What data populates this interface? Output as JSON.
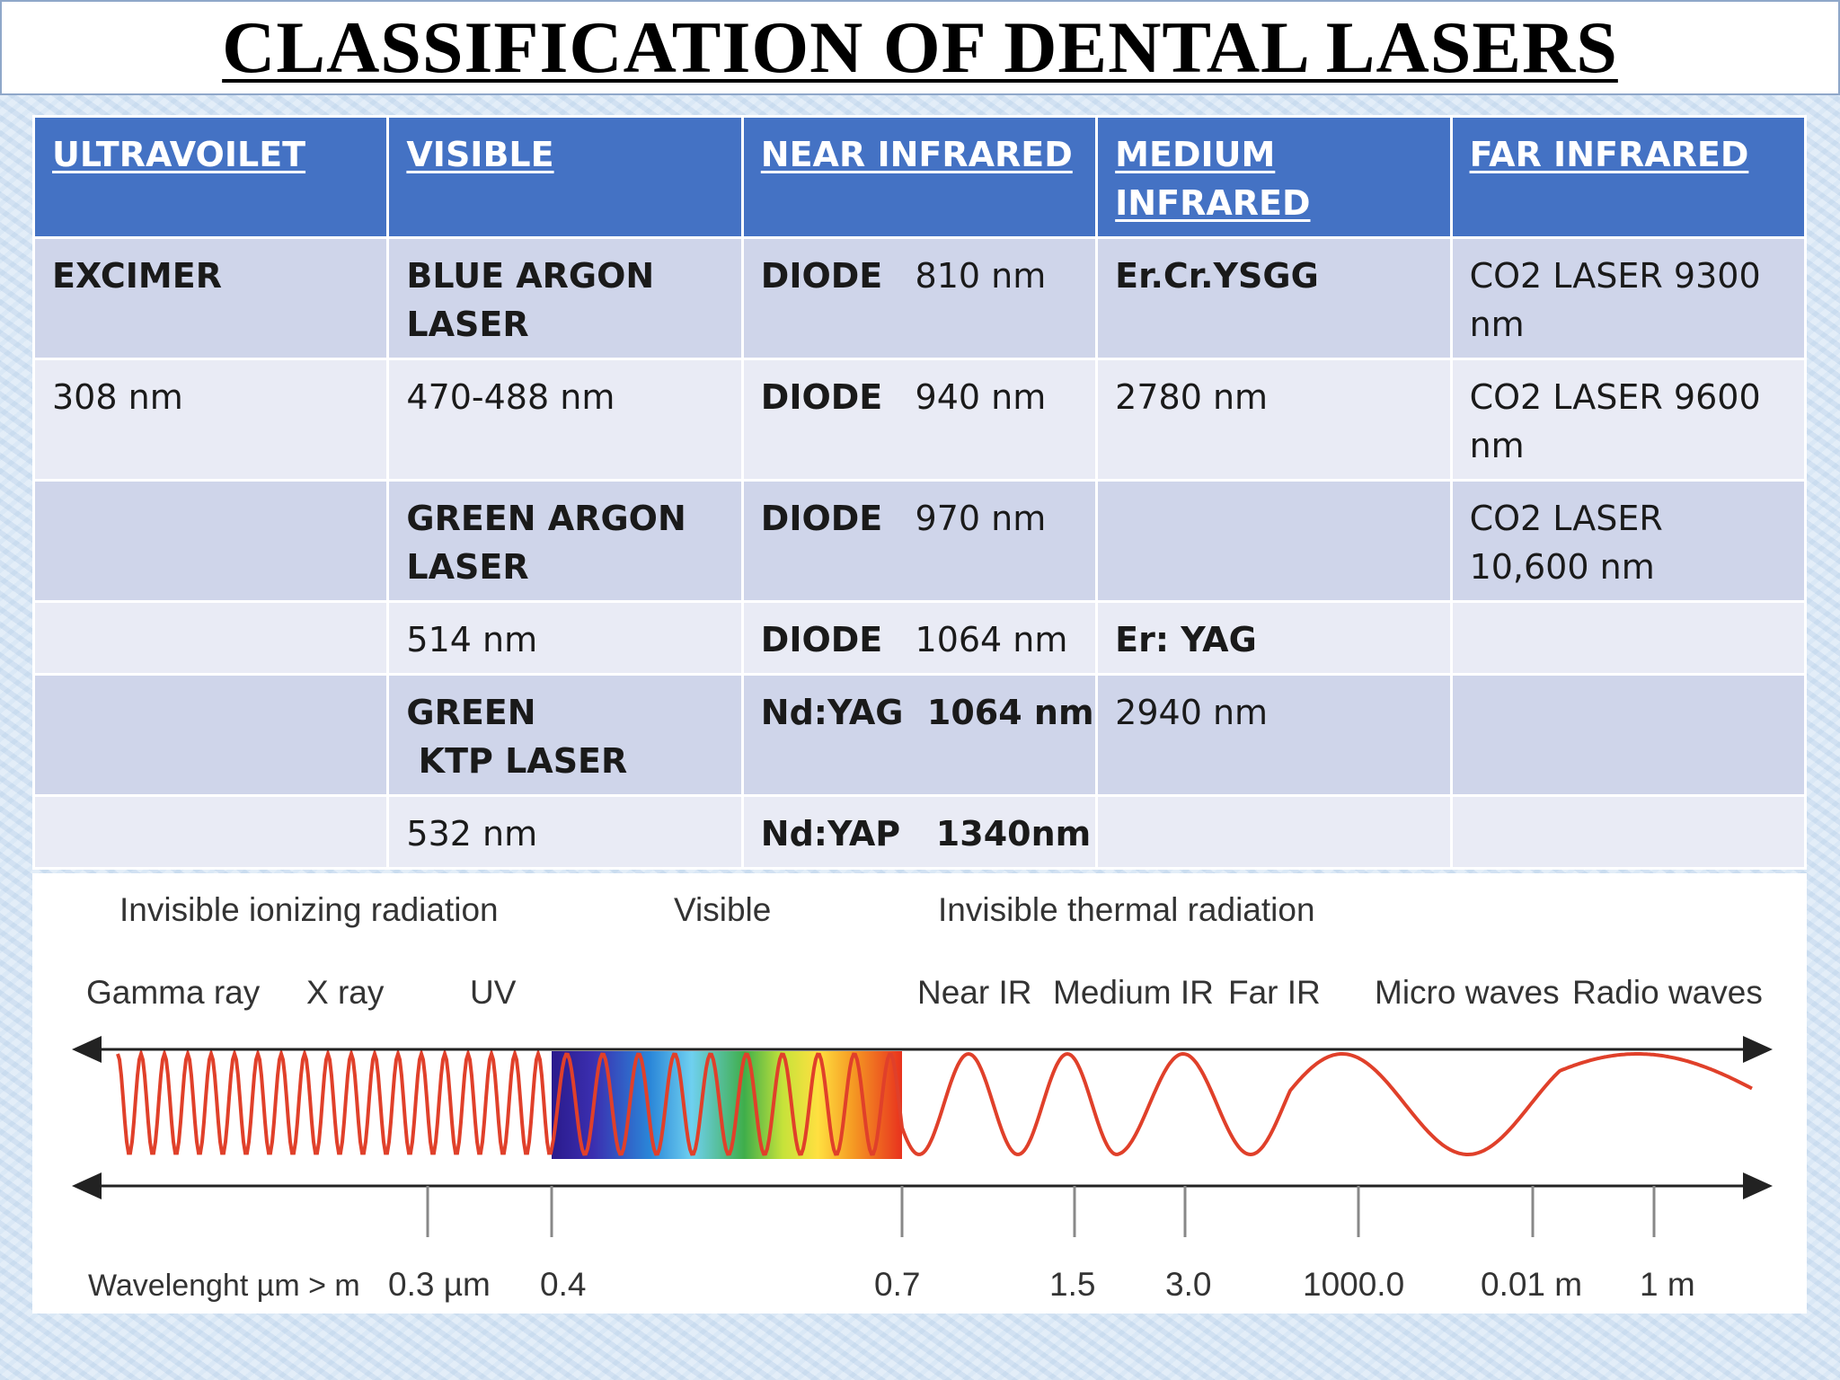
{
  "title": "CLASSIFICATION OF DENTAL LASERS",
  "table": {
    "headers": [
      "ULTRAVOILET",
      "VISIBLE",
      "NEAR INFRARED",
      "MEDIUM INFRARED",
      "FAR INFRARED"
    ],
    "rows": [
      [
        "EXCIMER",
        "BLUE ARGON LASER",
        "DIODE   810 nm",
        "Er.Cr.YSGG",
        "CO2 LASER 9300 nm"
      ],
      [
        "308 nm",
        "470-488 nm",
        "DIODE   940 nm",
        "2780 nm",
        "CO2 LASER 9600 nm"
      ],
      [
        "",
        "GREEN ARGON LASER",
        "DIODE   970 nm",
        "",
        "CO2 LASER 10,600 nm"
      ],
      [
        "",
        "514 nm",
        "DIODE   1064 nm",
        "Er: YAG",
        ""
      ],
      [
        "",
        "GREEN\n KTP LASER",
        "Nd:YAG  1064 nm",
        "2940 nm",
        ""
      ],
      [
        "",
        "532 nm",
        "Nd:YAP   1340nm",
        "",
        ""
      ]
    ],
    "header_color": "#4472c4",
    "row_color_odd": "#cfd5ea",
    "row_color_even": "#e9ebf5"
  },
  "spectrum": {
    "groups": {
      "ionizing": "Invisible ionizing radiation",
      "visible": "Visible",
      "thermal": "Invisible thermal radiation"
    },
    "bands": {
      "gamma": "Gamma ray",
      "xray": "X ray",
      "uv": "UV",
      "near_ir": "Near IR",
      "medium_ir": "Medium IR",
      "far_ir": "Far IR",
      "micro": "Micro waves",
      "radio": "Radio waves"
    },
    "axis_label": "Wavelenght µm > m",
    "ticks": [
      "0.3 µm",
      "0.4",
      "0.7",
      "1.5",
      "3.0",
      "1000.0",
      "0.01 m",
      "1 m"
    ],
    "wave_color": "#e0402a"
  }
}
